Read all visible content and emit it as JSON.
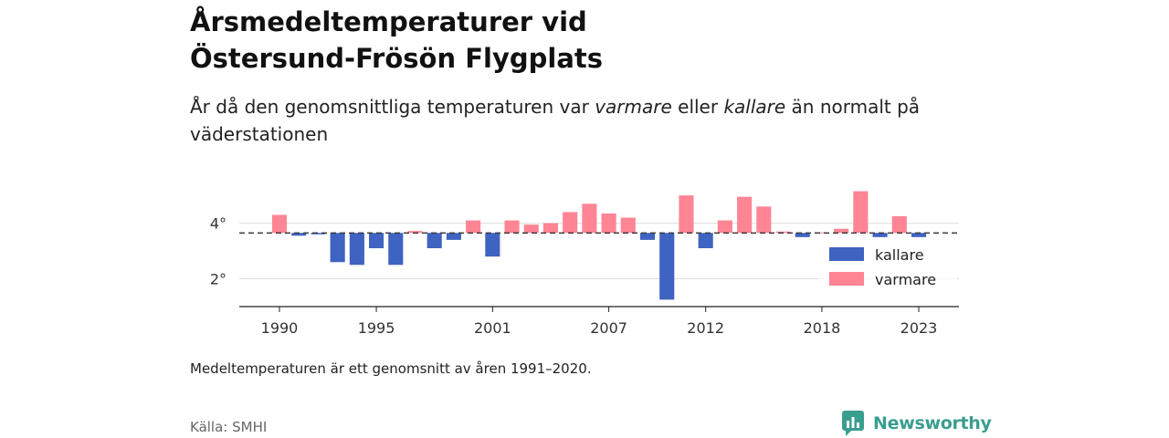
{
  "header": {
    "title_line1": "Årsmedeltemperaturer vid",
    "title_line2": "Östersund-Frösön Flygplats",
    "subtitle_part1": "År då den genomsnittliga temperaturen var ",
    "subtitle_em1": "varmare",
    "subtitle_part2": " eller ",
    "subtitle_em2": "kallare",
    "subtitle_part3": " än normalt på väderstationen"
  },
  "footer": {
    "note": "Medeltemperaturen är ett genomsnitt av åren 1991–2020.",
    "source": "Källa: SMHI",
    "brand": "Newsworthy"
  },
  "colors": {
    "kallare": "#3f63c1",
    "varmare": "#ff8595",
    "baseline": "#333333",
    "grid": "#dddddd",
    "brand": "#3a9e8f"
  },
  "chart_data": {
    "type": "bar",
    "baseline_value": 3.65,
    "ylim": [
      1.0,
      5.3
    ],
    "yticks": [
      2,
      4
    ],
    "ytick_suffix": "°",
    "xticks": [
      1990,
      1995,
      2001,
      2007,
      2012,
      2018,
      2023
    ],
    "grid": true,
    "legend_position": "right",
    "series": [
      {
        "name": "kallare",
        "color_key": "kallare"
      },
      {
        "name": "varmare",
        "color_key": "varmare"
      }
    ],
    "years": [
      1990,
      1991,
      1992,
      1993,
      1994,
      1995,
      1996,
      1997,
      1998,
      1999,
      2000,
      2001,
      2002,
      2003,
      2004,
      2005,
      2006,
      2007,
      2008,
      2009,
      2010,
      2011,
      2012,
      2013,
      2014,
      2015,
      2016,
      2017,
      2018,
      2019,
      2020,
      2021,
      2022,
      2023
    ],
    "values": [
      4.3,
      3.55,
      3.6,
      2.6,
      2.5,
      3.1,
      2.5,
      3.72,
      3.1,
      3.4,
      4.1,
      2.8,
      4.1,
      3.95,
      4.0,
      4.4,
      4.7,
      4.35,
      4.2,
      3.4,
      1.25,
      5.0,
      3.1,
      4.1,
      4.95,
      4.6,
      3.7,
      3.5,
      3.67,
      3.8,
      5.15,
      3.5,
      4.25,
      3.5
    ]
  }
}
